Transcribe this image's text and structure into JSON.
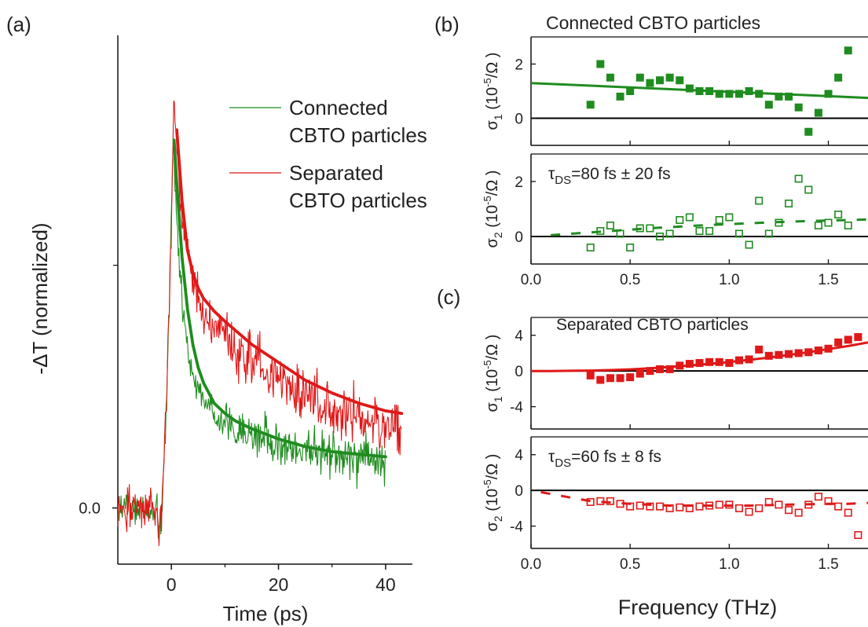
{
  "colors": {
    "connected": "#1f8c1f",
    "separated": "#e01818",
    "axis": "#111111",
    "zero_line": "#000000"
  },
  "panels": {
    "a": {
      "label": "(a)",
      "ylabel": "-ΔT (normalized)",
      "xlabel": "Time (ps)"
    },
    "b": {
      "label": "(b)",
      "title": "Connected CBTO particles",
      "annotation_symbol": "τ",
      "annotation_sub": "DS",
      "annotation_value": "=80 fs ± 20 fs"
    },
    "c": {
      "label": "(c)",
      "title": "Separated CBTO particles",
      "annotation_symbol": "τ",
      "annotation_sub": "DS",
      "annotation_value": "=60 fs ± 8 fs"
    }
  },
  "axis_text": {
    "sigma1": "σ",
    "sigma1_sub": "1",
    "sigma2": "σ",
    "sigma2_sub": "2",
    "unit_open": "(10",
    "unit_exp": "-5",
    "unit_close": "/Ω )",
    "freq_xlabel": "Frequency (THz)"
  },
  "chart_data": [
    {
      "id": "a",
      "type": "line",
      "xlabel": "Time (ps)",
      "ylabel": "-ΔT (normalized)",
      "xlim": [
        -10,
        45
      ],
      "ylim": [
        -0.22,
        1.85
      ],
      "xticks": [
        0,
        20,
        40
      ],
      "yticks": [
        0.0
      ],
      "ytick_labels": [
        "0.0"
      ],
      "legend": [
        {
          "name": "Connected",
          "line2": "CBTO particles",
          "color": "connected"
        },
        {
          "name": "Separated",
          "line2": "CBTO particles",
          "color": "separated"
        }
      ],
      "series": [
        {
          "name": "Connected CBTO particles",
          "kind": "noisy_data",
          "color": "connected",
          "t_end": 40,
          "rise_peak": 1.53,
          "fast_amp": 0.92,
          "fast_tau": 1.6,
          "slow_amp": 0.34,
          "slow_tau": 12,
          "offset": 0.18,
          "noise": 0.06
        },
        {
          "name": "Separated CBTO particles",
          "kind": "noisy_data",
          "color": "separated",
          "t_end": 43,
          "rise_peak": 1.5,
          "fast_amp": 0.74,
          "fast_tau": 1.8,
          "slow_amp": 0.68,
          "slow_tau": 22,
          "offset": 0.22,
          "noise": 0.075
        },
        {
          "name": "Connected fit",
          "kind": "fit",
          "color": "connected",
          "t_start": 0.5,
          "t_end": 40,
          "points": [
            [
              0.5,
              1.44
            ],
            [
              1,
              1.27
            ],
            [
              2,
              0.98
            ],
            [
              3,
              0.78
            ],
            [
              4,
              0.64
            ],
            [
              5,
              0.55
            ],
            [
              6,
              0.49
            ],
            [
              8,
              0.41
            ],
            [
              10,
              0.37
            ],
            [
              12,
              0.34
            ],
            [
              15,
              0.31
            ],
            [
              20,
              0.27
            ],
            [
              25,
              0.24
            ],
            [
              30,
              0.22
            ],
            [
              35,
              0.21
            ],
            [
              40,
              0.2
            ]
          ]
        },
        {
          "name": "Separated fit",
          "kind": "fit",
          "color": "separated",
          "t_start": 1,
          "t_end": 43,
          "points": [
            [
              1,
              1.48
            ],
            [
              2,
              1.2
            ],
            [
              3,
              1.01
            ],
            [
              4,
              0.92
            ],
            [
              5,
              0.86
            ],
            [
              6,
              0.82
            ],
            [
              8,
              0.77
            ],
            [
              10,
              0.73
            ],
            [
              15,
              0.64
            ],
            [
              20,
              0.57
            ],
            [
              25,
              0.5
            ],
            [
              30,
              0.45
            ],
            [
              35,
              0.41
            ],
            [
              40,
              0.38
            ],
            [
              43,
              0.37
            ]
          ]
        }
      ]
    },
    {
      "id": "b1",
      "type": "scatter",
      "xlim": [
        0,
        1.7
      ],
      "ylim": [
        -1,
        3
      ],
      "yticks": [
        0,
        2
      ],
      "series": [
        {
          "name": "σ1 data",
          "marker": "filled_square",
          "color": "connected",
          "x": [
            0.3,
            0.35,
            0.4,
            0.45,
            0.5,
            0.55,
            0.6,
            0.65,
            0.7,
            0.75,
            0.8,
            0.85,
            0.9,
            0.95,
            1.0,
            1.05,
            1.1,
            1.15,
            1.2,
            1.25,
            1.3,
            1.35,
            1.4,
            1.45,
            1.5,
            1.55,
            1.6
          ],
          "y": [
            0.5,
            2.0,
            1.5,
            0.8,
            1.0,
            1.5,
            1.3,
            1.4,
            1.5,
            1.4,
            1.1,
            1.0,
            1.0,
            0.9,
            0.9,
            0.9,
            1.0,
            0.9,
            0.5,
            0.8,
            0.8,
            0.4,
            -0.5,
            0.2,
            0.9,
            1.5,
            2.5
          ]
        },
        {
          "name": "σ1 fit",
          "kind": "fit",
          "color": "connected",
          "x": [
            0,
            1.7
          ],
          "y": [
            1.3,
            0.75
          ]
        }
      ]
    },
    {
      "id": "b2",
      "type": "scatter",
      "xlabel": "",
      "xlim": [
        0,
        1.7
      ],
      "ylim": [
        -1,
        3
      ],
      "xticks": [
        0.0,
        0.5,
        1.0,
        1.5
      ],
      "xtick_labels": [
        "0.0",
        "0.5",
        "1.0",
        "1.5"
      ],
      "yticks": [
        0,
        2
      ],
      "series": [
        {
          "name": "σ2 data",
          "marker": "open_square",
          "color": "connected",
          "x": [
            0.3,
            0.35,
            0.4,
            0.45,
            0.5,
            0.55,
            0.6,
            0.65,
            0.7,
            0.75,
            0.8,
            0.85,
            0.9,
            0.95,
            1.0,
            1.05,
            1.1,
            1.15,
            1.2,
            1.25,
            1.3,
            1.35,
            1.4,
            1.45,
            1.5,
            1.55,
            1.6
          ],
          "y": [
            -0.4,
            0.2,
            0.4,
            0.1,
            -0.4,
            0.3,
            0.3,
            0.0,
            0.1,
            0.6,
            0.7,
            0.2,
            0.2,
            0.6,
            0.7,
            0.1,
            -0.3,
            1.3,
            0.1,
            0.5,
            1.2,
            2.1,
            1.7,
            0.4,
            0.5,
            0.8,
            0.4
          ]
        },
        {
          "name": "σ2 fit",
          "kind": "fit",
          "dashed": true,
          "color": "connected",
          "x": [
            0.1,
            0.2,
            0.3,
            0.4,
            0.5,
            0.6,
            0.7,
            0.8,
            0.9,
            1.0,
            1.1,
            1.2,
            1.3,
            1.4,
            1.5,
            1.6,
            1.7
          ],
          "y": [
            0.05,
            0.1,
            0.15,
            0.2,
            0.25,
            0.3,
            0.34,
            0.38,
            0.42,
            0.45,
            0.48,
            0.51,
            0.54,
            0.56,
            0.58,
            0.6,
            0.62
          ]
        }
      ]
    },
    {
      "id": "c1",
      "type": "scatter",
      "xlim": [
        0,
        1.7
      ],
      "ylim": [
        -6.5,
        6
      ],
      "yticks": [
        -4,
        0,
        4
      ],
      "series": [
        {
          "name": "σ1 data",
          "marker": "filled_square",
          "color": "separated",
          "x": [
            0.3,
            0.35,
            0.4,
            0.45,
            0.5,
            0.55,
            0.6,
            0.65,
            0.7,
            0.75,
            0.8,
            0.85,
            0.9,
            0.95,
            1.0,
            1.05,
            1.1,
            1.15,
            1.2,
            1.25,
            1.3,
            1.35,
            1.4,
            1.45,
            1.5,
            1.55,
            1.6,
            1.65
          ],
          "y": [
            -0.5,
            -1.0,
            -0.8,
            -0.8,
            -0.7,
            -0.3,
            0.0,
            0.2,
            0.2,
            0.6,
            0.8,
            0.9,
            1.0,
            1.0,
            0.9,
            1.2,
            1.3,
            2.4,
            1.7,
            1.8,
            1.9,
            2.0,
            2.1,
            2.3,
            2.5,
            3.2,
            3.5,
            3.8
          ]
        },
        {
          "name": "σ1 fit",
          "kind": "fit",
          "color": "separated",
          "x": [
            0.0,
            0.1,
            0.2,
            0.3,
            0.4,
            0.5,
            0.6,
            0.7,
            0.8,
            0.9,
            1.0,
            1.1,
            1.2,
            1.3,
            1.4,
            1.5,
            1.6,
            1.7
          ],
          "y": [
            0.0,
            0.0,
            0.02,
            0.05,
            0.1,
            0.18,
            0.3,
            0.45,
            0.62,
            0.8,
            1.0,
            1.25,
            1.5,
            1.8,
            2.1,
            2.45,
            2.8,
            3.2
          ]
        }
      ]
    },
    {
      "id": "c2",
      "type": "scatter",
      "xlabel": "Frequency (THz)",
      "xlim": [
        0,
        1.7
      ],
      "ylim": [
        -6.5,
        6
      ],
      "xticks": [
        0.0,
        0.5,
        1.0,
        1.5
      ],
      "xtick_labels": [
        "0.0",
        "0.5",
        "1.0",
        "1.5"
      ],
      "yticks": [
        -4,
        0,
        4
      ],
      "series": [
        {
          "name": "σ2 data",
          "marker": "open_square",
          "color": "separated",
          "x": [
            0.3,
            0.35,
            0.4,
            0.45,
            0.5,
            0.55,
            0.6,
            0.65,
            0.7,
            0.75,
            0.8,
            0.85,
            0.9,
            0.95,
            1.0,
            1.05,
            1.1,
            1.15,
            1.2,
            1.25,
            1.3,
            1.35,
            1.4,
            1.45,
            1.5,
            1.55,
            1.6,
            1.65
          ],
          "y": [
            -1.3,
            -1.2,
            -1.2,
            -1.5,
            -1.8,
            -1.7,
            -1.8,
            -1.8,
            -2.0,
            -1.9,
            -2.0,
            -1.8,
            -1.7,
            -1.6,
            -1.6,
            -2.0,
            -2.4,
            -2.0,
            -1.3,
            -1.6,
            -2.2,
            -2.5,
            -1.6,
            -0.7,
            -1.2,
            -1.8,
            -2.5,
            -5.0
          ]
        },
        {
          "name": "σ2 fit",
          "kind": "fit",
          "dashed": true,
          "color": "separated",
          "x": [
            0.05,
            0.15,
            0.3,
            0.5,
            0.7,
            0.9,
            1.1,
            1.3,
            1.5,
            1.6,
            1.7
          ],
          "y": [
            -0.2,
            -0.6,
            -1.2,
            -1.5,
            -1.7,
            -1.7,
            -1.7,
            -1.6,
            -1.5,
            -1.5,
            -1.4
          ]
        }
      ]
    }
  ]
}
